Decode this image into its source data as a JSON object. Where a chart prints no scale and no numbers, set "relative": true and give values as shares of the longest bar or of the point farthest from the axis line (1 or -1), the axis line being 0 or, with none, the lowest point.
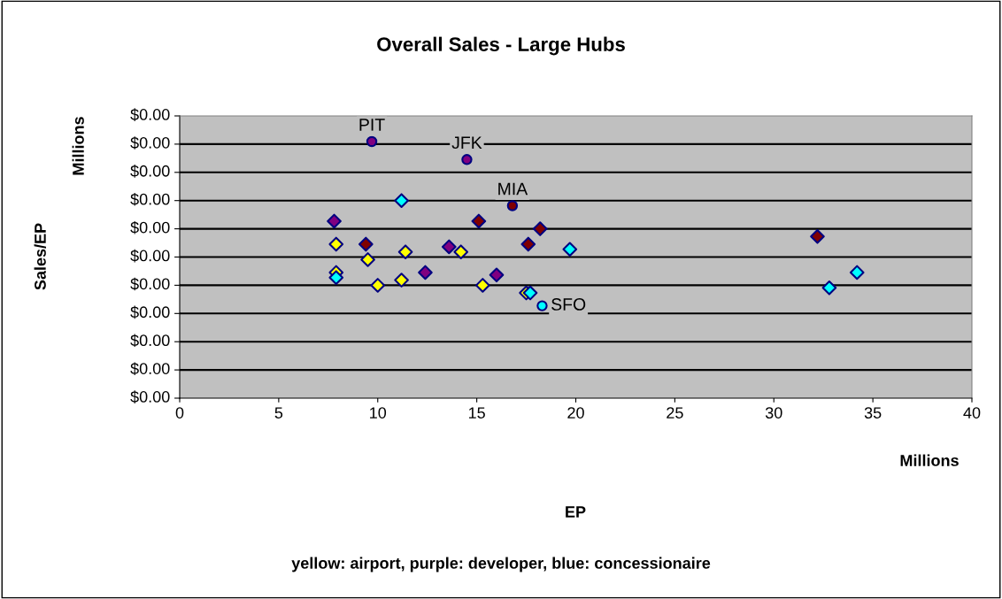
{
  "chart_data": {
    "type": "scatter",
    "title": "Overall Sales - Large Hubs",
    "xlim": [
      0,
      40
    ],
    "xticks": [
      0,
      5,
      10,
      15,
      20,
      25,
      30,
      35,
      40
    ],
    "relative": true,
    "grid": "y",
    "legend": false,
    "series": [
      {
        "color": "#ffff00",
        "marker": "diamond",
        "x": [
          7.9,
          7.9,
          9.5,
          10.0,
          11.4,
          11.2,
          14.2,
          15.3,
          17.5
        ],
        "values": [
          0.6,
          0.49,
          0.54,
          0.44,
          0.57,
          0.46,
          0.57,
          0.44,
          0.41
        ]
      },
      {
        "color": "#800080",
        "marker": "diamond",
        "x": [
          7.8,
          13.6,
          12.4,
          16.0
        ],
        "values": [
          0.69,
          0.59,
          0.49,
          0.48
        ]
      },
      {
        "color": "#800000",
        "marker": "diamond",
        "x": [
          9.4,
          15.1,
          18.2,
          17.6,
          32.2
        ],
        "values": [
          0.6,
          0.69,
          0.66,
          0.6,
          0.63
        ]
      },
      {
        "color": "#00ffff",
        "marker": "diamond",
        "x": [
          11.2,
          7.9,
          19.7,
          32.8,
          34.2,
          17.7
        ],
        "values": [
          0.77,
          0.47,
          0.58,
          0.43,
          0.49,
          0.41
        ]
      },
      {
        "color": "#800080",
        "marker": "circle",
        "x": [
          9.7,
          14.5
        ],
        "values": [
          1.0,
          0.93
        ]
      },
      {
        "color": "#800000",
        "marker": "circle",
        "x": [
          16.8
        ],
        "values": [
          0.75
        ]
      },
      {
        "color": "#00ffff",
        "marker": "circle",
        "x": [
          18.3
        ],
        "values": [
          0.36
        ]
      }
    ],
    "annotations": [
      {
        "text": "PIT",
        "x": 9.7,
        "y": 1.0
      },
      {
        "text": "JFK",
        "x": 14.5,
        "y": 0.93
      },
      {
        "text": "MIA",
        "x": 16.8,
        "y": 0.75
      },
      {
        "text": "SFO",
        "x": 18.3,
        "y": 0.36
      },
      "Millions",
      "Sales/EP",
      "Millions",
      "EP",
      "yellow: airport, purple: developer, blue: concessionaire",
      "$0.00",
      "$0.00",
      "$0.00",
      "$0.00",
      "$0.00",
      "$0.00",
      "$0.00",
      "$0.00",
      "$0.00",
      "$0.00",
      "$0.00"
    ]
  }
}
